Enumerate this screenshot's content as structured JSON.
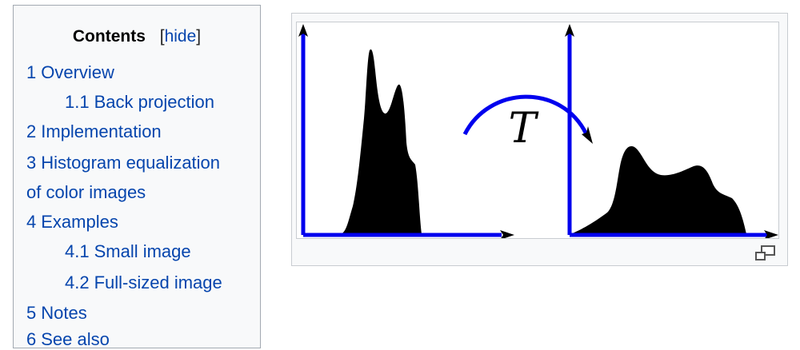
{
  "toc": {
    "heading": "Contents",
    "toggle_open": "[",
    "toggle_label": "hide",
    "toggle_close": "]",
    "items": [
      {
        "number": "1",
        "label": "Overview"
      },
      {
        "number": "1.1",
        "label": "Back projection"
      },
      {
        "number": "2",
        "label": "Implementation"
      },
      {
        "number": "3",
        "label": "Histogram equalization"
      },
      {
        "label": "of color images"
      },
      {
        "number": "4",
        "label": "Examples"
      },
      {
        "number": "4.1",
        "label": "Small image"
      },
      {
        "number": "4.2",
        "label": "Full-sized image"
      },
      {
        "number": "5",
        "label": "Notes"
      },
      {
        "number": "6",
        "label": "See also"
      }
    ]
  },
  "figure": {
    "transform_label": "T",
    "axis_color": "#0000ee",
    "fill_color": "#000000"
  },
  "icons": {
    "magnify": "magnify-clip-icon"
  }
}
